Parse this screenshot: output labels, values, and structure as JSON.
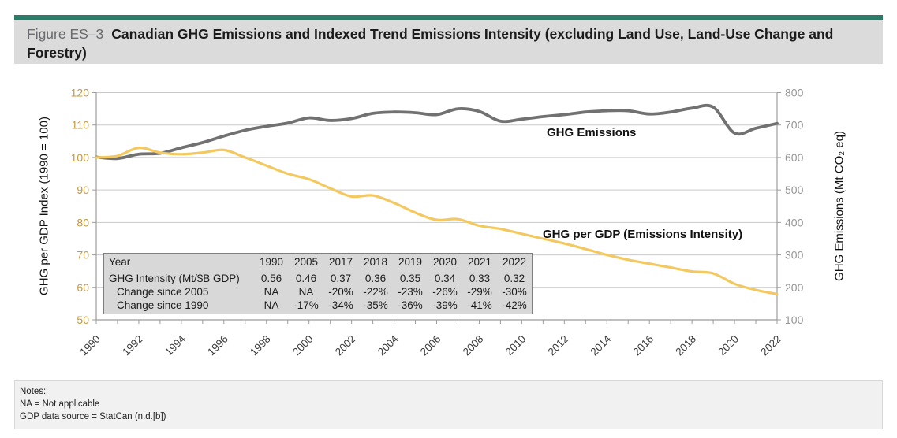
{
  "figure": {
    "label": "Figure ES–3",
    "title": "Canadian GHG Emissions and Indexed Trend Emissions Intensity (excluding Land Use, Land-Use Change and Forestry)"
  },
  "chart_data": {
    "type": "line",
    "x": [
      1990,
      1991,
      1992,
      1993,
      1994,
      1995,
      1996,
      1997,
      1998,
      1999,
      2000,
      2001,
      2002,
      2003,
      2004,
      2005,
      2006,
      2007,
      2008,
      2009,
      2010,
      2011,
      2012,
      2013,
      2014,
      2015,
      2016,
      2017,
      2018,
      2019,
      2020,
      2021,
      2022
    ],
    "x_tick_every": 2,
    "series": [
      {
        "name": "GHG Emissions",
        "axis": "right",
        "color": "#717171",
        "width": 3.8,
        "values": [
          601,
          597,
          610,
          613,
          630,
          646,
          666,
          684,
          696,
          706,
          722,
          714,
          720,
          736,
          740,
          738,
          732,
          750,
          742,
          712,
          718,
          726,
          732,
          740,
          744,
          744,
          734,
          740,
          752,
          755,
          675,
          690,
          705
        ]
      },
      {
        "name": "GHG per GDP (Emissions Intensity)",
        "axis": "left",
        "color": "#F3C95F",
        "width": 3.2,
        "values": [
          100,
          100.5,
          103,
          101.5,
          101,
          101.5,
          102.3,
          100,
          97.5,
          95,
          93.3,
          90.5,
          88,
          88.3,
          86,
          83,
          80.8,
          81,
          79,
          78,
          76.5,
          75,
          73.5,
          71.8,
          70,
          68.5,
          67.3,
          66.1,
          64.9,
          64.3,
          61.1,
          59.2,
          57.9
        ]
      }
    ],
    "left_axis": {
      "label": "GHG per GDP Index (1990 = 100)",
      "min": 50,
      "max": 120,
      "tick_step": 10,
      "tick_color": "#C49A3F"
    },
    "right_axis": {
      "label": "GHG Emissions (Mt CO₂ eq)",
      "min": 100,
      "max": 800,
      "tick_step": 100,
      "tick_color": "#969696"
    },
    "x_tick_label_color": "#3a3a3a",
    "grid": true,
    "gridline_color": "#c9c9c9",
    "axis_line_color": "#9c9c9c",
    "legend_position": "inline-annotations"
  },
  "table": {
    "rows": [
      [
        "Year",
        "1990",
        "2005",
        "2017",
        "2018",
        "2019",
        "2020",
        "2021",
        "2022"
      ],
      [
        "GHG Intensity (Mt/$B GDP)",
        "0.56",
        "0.46",
        "0.37",
        "0.36",
        "0.35",
        "0.34",
        "0.33",
        "0.32"
      ],
      [
        "Change since 2005",
        "NA",
        "NA",
        "-20%",
        "-22%",
        "-23%",
        "-26%",
        "-29%",
        "-30%"
      ],
      [
        "Change since 1990",
        "NA",
        "-17%",
        "-34%",
        "-35%",
        "-36%",
        "-39%",
        "-41%",
        "-42%"
      ]
    ]
  },
  "notes": {
    "lines": [
      "Notes:",
      "NA = Not applicable",
      "GDP data source = StatCan (n.d.[b])"
    ]
  },
  "colors": {
    "accent_bar": "#2A7B68",
    "header_background": "#dbdbdb",
    "table_background": "#d8d8d8",
    "notes_background": "#f1f1f2",
    "emissions_line": "#717171",
    "intensity_line": "#F3C95F",
    "left_tick_labels": "#C49A3F",
    "right_tick_labels": "#969696"
  }
}
